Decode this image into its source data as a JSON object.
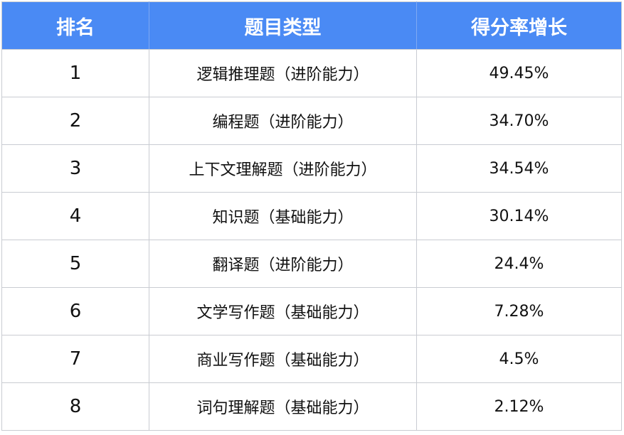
{
  "table": {
    "headers": [
      "排名",
      "题目类型",
      "得分率增长"
    ],
    "rows": [
      {
        "rank": "1",
        "type": "逻辑推理题（进阶能力）",
        "growth": "49.45%"
      },
      {
        "rank": "2",
        "type": "编程题（进阶能力）",
        "growth": "34.70%"
      },
      {
        "rank": "3",
        "type": "上下文理解题（进阶能力）",
        "growth": "34.54%"
      },
      {
        "rank": "4",
        "type": "知识题（基础能力）",
        "growth": "30.14%"
      },
      {
        "rank": "5",
        "type": "翻译题（进阶能力）",
        "growth": "24.4%"
      },
      {
        "rank": "6",
        "type": "文学写作题（基础能力）",
        "growth": "7.28%"
      },
      {
        "rank": "7",
        "type": "商业写作题（基础能力）",
        "growth": "4.5%"
      },
      {
        "rank": "8",
        "type": "词句理解题（基础能力）",
        "growth": "2.12%"
      }
    ]
  },
  "colors": {
    "header_background": "#4a8af4",
    "header_text": "#ffffff",
    "grid_line": "#c9ccd2"
  }
}
